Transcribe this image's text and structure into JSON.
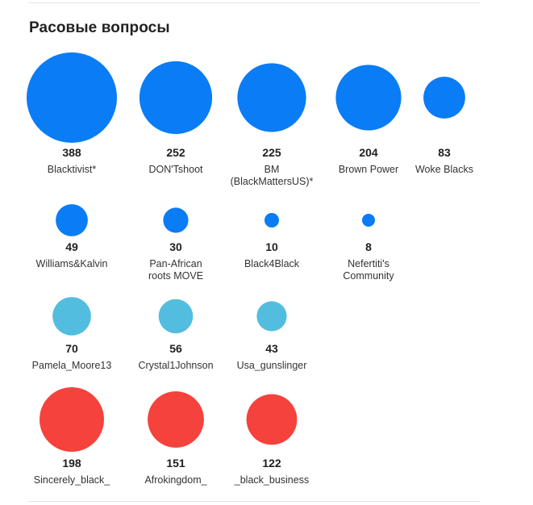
{
  "title": "Расовые вопросы",
  "chart_data": {
    "type": "bubble",
    "title": "Расовые вопросы",
    "value_max": 388,
    "colors": {
      "blue": "#0a7cf6",
      "light_blue": "#53bde0",
      "red": "#f5423c"
    },
    "rows": [
      {
        "color_key": "blue",
        "items": [
          {
            "value": 388,
            "label": [
              "Blacktivist*"
            ]
          },
          {
            "value": 252,
            "label": [
              "DON'Tshoot"
            ]
          },
          {
            "value": 225,
            "label": [
              "BM",
              "(BlackMattersUS)*"
            ]
          },
          {
            "value": 204,
            "label": [
              "Brown Power"
            ]
          },
          {
            "value": 83,
            "label": [
              "Woke Blacks"
            ]
          }
        ]
      },
      {
        "color_key": "blue",
        "items": [
          {
            "value": 49,
            "label": [
              "Williams&Kalvin"
            ]
          },
          {
            "value": 30,
            "label": [
              "Pan-African",
              "roots MOVE"
            ]
          },
          {
            "value": 10,
            "label": [
              "Black4Black"
            ]
          },
          {
            "value": 8,
            "label": [
              "Nefertiti's",
              "Community"
            ]
          }
        ]
      },
      {
        "color_key": "light_blue",
        "items": [
          {
            "value": 70,
            "label": [
              "Pamela_Moore13"
            ]
          },
          {
            "value": 56,
            "label": [
              "Crystal1Johnson"
            ]
          },
          {
            "value": 43,
            "label": [
              "Usa_gunslinger"
            ]
          }
        ]
      },
      {
        "color_key": "red",
        "items": [
          {
            "value": 198,
            "label": [
              "Sincerely_black_"
            ]
          },
          {
            "value": 151,
            "label": [
              "Afrokingdom_"
            ]
          },
          {
            "value": 122,
            "label": [
              "_black_business"
            ]
          }
        ]
      }
    ]
  }
}
